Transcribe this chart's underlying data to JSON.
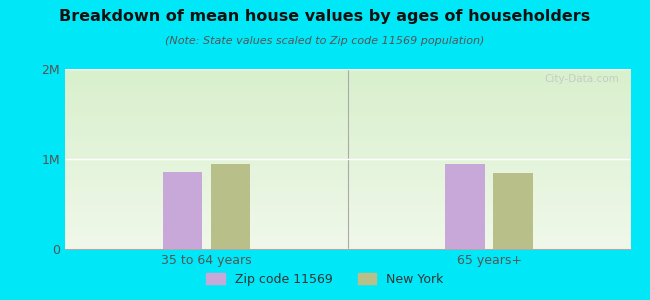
{
  "title": "Breakdown of mean house values by ages of householders",
  "subtitle": "(Note: State values scaled to Zip code 11569 population)",
  "categories": [
    "35 to 64 years",
    "65 years+"
  ],
  "zip_values": [
    860000,
    940000
  ],
  "ny_values": [
    940000,
    840000
  ],
  "zip_color": "#c8a8d8",
  "ny_color": "#b8bf88",
  "ylim": [
    0,
    2000000
  ],
  "ytick_labels": [
    "0",
    "1M",
    "2M"
  ],
  "background_color": "#00e8f8",
  "bar_width": 0.28,
  "group_positions": [
    1.0,
    3.0
  ],
  "xlim": [
    0.0,
    4.0
  ],
  "legend_labels": [
    "Zip code 11569",
    "New York"
  ],
  "watermark": "City-Data.com",
  "grad_top_color": "#d8f0cc",
  "grad_bottom_color": "#f0f8ea"
}
